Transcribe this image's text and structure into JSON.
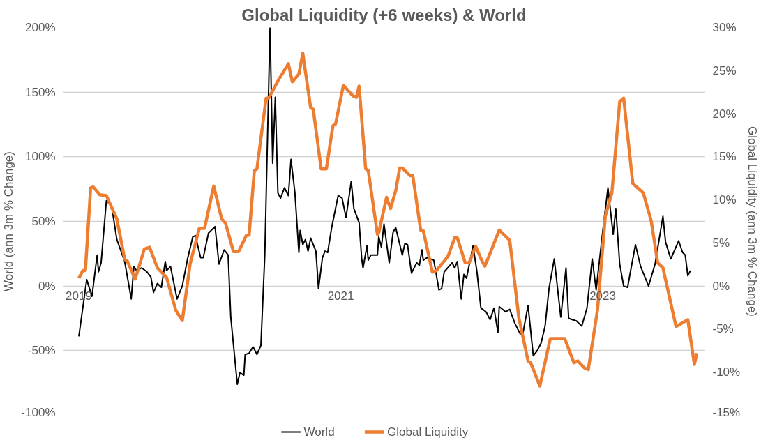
{
  "chart_data": {
    "type": "line",
    "title": "Global Liquidity (+6 weeks) & World",
    "ylabel": "World (ann 3m % Change)",
    "y2label": "Global Liquidity (ann 3m % Change)",
    "xlim": [
      2018.88,
      2023.78
    ],
    "xticks": [
      2019,
      2021,
      2023
    ],
    "ylim": [
      -100,
      200
    ],
    "yticks": [
      {
        "value": -100,
        "label": "-100%"
      },
      {
        "value": -50,
        "label": "-50%"
      },
      {
        "value": 0,
        "label": "0%"
      },
      {
        "value": 50,
        "label": "50%"
      },
      {
        "value": 100,
        "label": "100%"
      },
      {
        "value": 150,
        "label": "150%"
      },
      {
        "value": 200,
        "label": "200%"
      }
    ],
    "y2lim": [
      -15,
      30
    ],
    "y2ticks": [
      {
        "value": -15,
        "label": "-15%"
      },
      {
        "value": -10,
        "label": "-10%"
      },
      {
        "value": -5,
        "label": "-5%"
      },
      {
        "value": 0,
        "label": "0%"
      },
      {
        "value": 5,
        "label": "5%"
      },
      {
        "value": 10,
        "label": "10%"
      },
      {
        "value": 15,
        "label": "15%"
      },
      {
        "value": 20,
        "label": "20%"
      },
      {
        "value": 25,
        "label": "25%"
      },
      {
        "value": 30,
        "label": "30%"
      }
    ],
    "grid": "y",
    "legend": "bottom",
    "marker": "none",
    "line_style": "solid",
    "series": [
      {
        "name": "World",
        "color": "#000000",
        "axis": "y",
        "x": [
          2019.0,
          2019.06,
          2019.1,
          2019.14,
          2019.15,
          2019.17,
          2019.21,
          2019.25,
          2019.29,
          2019.35,
          2019.4,
          2019.42,
          2019.44,
          2019.48,
          2019.52,
          2019.55,
          2019.57,
          2019.6,
          2019.63,
          2019.66,
          2019.67,
          2019.7,
          2019.75,
          2019.79,
          2019.83,
          2019.87,
          2019.89,
          2019.93,
          2019.95,
          2019.99,
          2020.02,
          2020.04,
          2020.07,
          2020.11,
          2020.14,
          2020.16,
          2020.21,
          2020.23,
          2020.26,
          2020.27,
          2020.3,
          2020.33,
          2020.36,
          2020.39,
          2020.42,
          2020.46,
          2020.48,
          2020.5,
          2020.52,
          2020.54,
          2020.57,
          2020.6,
          2020.62,
          2020.65,
          2020.68,
          2020.69,
          2020.71,
          2020.73,
          2020.75,
          2020.77,
          2020.81,
          2020.83,
          2020.86,
          2020.88,
          2020.9,
          2020.93,
          2020.98,
          2021.01,
          2021.04,
          2021.08,
          2021.1,
          2021.14,
          2021.16,
          2021.17,
          2021.2,
          2021.21,
          2021.23,
          2021.28,
          2021.29,
          2021.31,
          2021.33,
          2021.37,
          2021.4,
          2021.42,
          2021.47,
          2021.49,
          2021.51,
          2021.54,
          2021.58,
          2021.6,
          2021.62,
          2021.63,
          2021.66,
          2021.71,
          2021.75,
          2021.77,
          2021.79,
          2021.85,
          2021.87,
          2021.89,
          2021.92,
          2021.94,
          2021.96,
          2022.01,
          2022.04,
          2022.07,
          2022.11,
          2022.14,
          2022.17,
          2022.2,
          2022.21,
          2022.26,
          2022.29,
          2022.33,
          2022.37,
          2022.39,
          2022.43,
          2022.47,
          2022.5,
          2022.53,
          2022.56,
          2022.59,
          2022.63,
          2022.68,
          2022.72,
          2022.74,
          2022.8,
          2022.84,
          2022.88,
          2022.92,
          2022.95,
          2023.0,
          2023.04,
          2023.08,
          2023.1,
          2023.13,
          2023.16,
          2023.19,
          2023.25,
          2023.29,
          2023.35,
          2023.4,
          2023.46,
          2023.48,
          2023.52,
          2023.58,
          2023.61,
          2023.63,
          2023.65,
          2023.67
        ],
        "values": [
          -39,
          5,
          -8,
          24,
          11,
          18,
          66,
          62,
          36,
          19,
          -10,
          15,
          12,
          14,
          11,
          7,
          -5,
          2,
          -1,
          19,
          12,
          15,
          -10,
          0,
          21,
          38,
          39,
          22,
          22,
          41,
          44,
          46,
          17,
          28,
          24,
          -24,
          -76,
          -67,
          -69,
          -53,
          -52,
          -47,
          -53,
          -46,
          24,
          200,
          95,
          146,
          72,
          68,
          76,
          70,
          98,
          72,
          26,
          43,
          32,
          36,
          27,
          37,
          27,
          -2,
          22,
          27,
          26,
          45,
          70,
          68,
          53,
          81,
          60,
          49,
          21,
          14,
          31,
          20,
          24,
          24,
          38,
          30,
          48,
          18,
          42,
          45,
          24,
          33,
          32,
          10,
          18,
          16,
          28,
          20,
          22,
          20,
          -3,
          -2,
          11,
          18,
          14,
          19,
          -10,
          9,
          6,
          31,
          11,
          -17,
          -20,
          -26,
          -17,
          -36,
          -16,
          -20,
          -18,
          -29,
          -37,
          -37,
          -15,
          -54,
          -50,
          -44,
          -31,
          -2,
          21,
          -24,
          14,
          -25,
          -27,
          -31,
          -17,
          21,
          -3,
          42,
          76,
          40,
          60,
          17,
          0,
          -1,
          32,
          15,
          0,
          17,
          54,
          34,
          21,
          35,
          26,
          24,
          8,
          12
        ]
      },
      {
        "name": "Global Liquidity",
        "color": "#ed7d31",
        "axis": "y2",
        "x": [
          2019.0,
          2019.03,
          2019.05,
          2019.09,
          2019.11,
          2019.16,
          2019.21,
          2019.29,
          2019.35,
          2019.37,
          2019.43,
          2019.5,
          2019.54,
          2019.6,
          2019.67,
          2019.74,
          2019.79,
          2019.85,
          2019.92,
          2019.96,
          2020.03,
          2020.09,
          2020.12,
          2020.18,
          2020.22,
          2020.28,
          2020.3,
          2020.34,
          2020.36,
          2020.43,
          2020.45,
          2020.52,
          2020.6,
          2020.63,
          2020.68,
          2020.71,
          2020.77,
          2020.79,
          2020.85,
          2020.89,
          2020.94,
          2020.96,
          2021.02,
          2021.09,
          2021.12,
          2021.14,
          2021.19,
          2021.21,
          2021.28,
          2021.29,
          2021.35,
          2021.38,
          2021.42,
          2021.45,
          2021.47,
          2021.53,
          2021.55,
          2021.61,
          2021.63,
          2021.7,
          2021.73,
          2021.79,
          2021.82,
          2021.87,
          2021.89,
          2021.95,
          2021.98,
          2022.03,
          2022.07,
          2022.1,
          2022.13,
          2022.21,
          2022.29,
          2022.36,
          2022.43,
          2022.45,
          2022.52,
          2022.6,
          2022.71,
          2022.78,
          2022.81,
          2022.86,
          2022.89,
          2022.96,
          2023.02,
          2023.07,
          2023.13,
          2023.16,
          2023.23,
          2023.31,
          2023.37,
          2023.42,
          2023.46,
          2023.56,
          2023.65,
          2023.7,
          2023.72
        ],
        "values": [
          0.9,
          1.8,
          1.8,
          11.4,
          11.5,
          10.6,
          10.5,
          7.8,
          3.1,
          2.9,
          0.8,
          4.3,
          4.5,
          2.1,
          1.0,
          -2.8,
          -4.0,
          2.6,
          6.7,
          6.7,
          11.6,
          7.8,
          7.3,
          4.0,
          4.0,
          5.9,
          5.9,
          13.4,
          13.6,
          21.8,
          21.8,
          23.8,
          25.8,
          23.7,
          24.6,
          27.0,
          20.7,
          20.5,
          13.6,
          13.6,
          18.6,
          18.8,
          23.3,
          22.1,
          21.9,
          23.2,
          13.6,
          13.4,
          6.0,
          6.2,
          10.3,
          9.0,
          11.1,
          13.7,
          13.7,
          12.8,
          12.8,
          6.5,
          6.4,
          1.6,
          1.8,
          2.9,
          3.5,
          5.6,
          5.6,
          2.7,
          2.7,
          4.6,
          3.2,
          2.3,
          3.4,
          6.5,
          5.3,
          -3.7,
          -8.7,
          -8.9,
          -11.6,
          -6.1,
          -6.1,
          -8.9,
          -8.7,
          -9.5,
          -9.7,
          -2.8,
          8.1,
          10.8,
          21.4,
          21.8,
          11.9,
          10.8,
          7.6,
          2.7,
          2.1,
          -4.7,
          -3.9,
          -9.1,
          -7.8
        ]
      }
    ]
  }
}
